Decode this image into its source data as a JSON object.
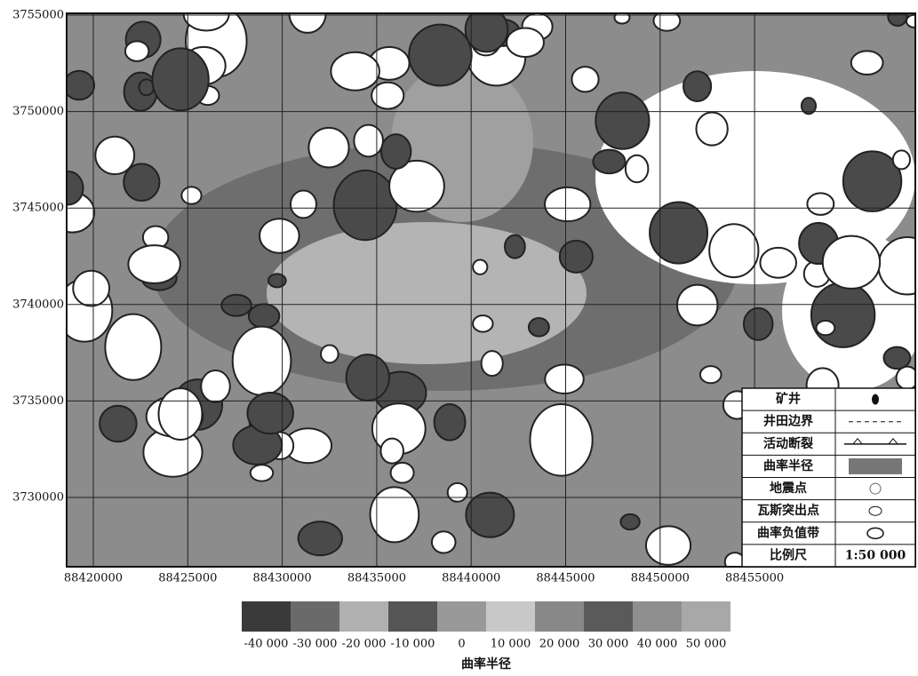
{
  "map": {
    "y_ticks": [
      "3755000",
      "3750000",
      "3745000",
      "3740000",
      "3735000",
      "3730000"
    ],
    "x_ticks": [
      "88420000",
      "88425000",
      "88430000",
      "88435000",
      "88440000",
      "88445000",
      "88450000",
      "88455000"
    ],
    "legend": {
      "rows": [
        "矿井",
        "井田边界",
        "活动断裂",
        "曲率半径",
        "地震点",
        "瓦斯突出点",
        "曲率负值带",
        "比例尺"
      ],
      "scale": "1:50 000"
    },
    "colorbar": {
      "labels": [
        "-40 000",
        "-30 000",
        "-20 000",
        "-10 000",
        "0",
        "10 000",
        "20 000",
        "30 000",
        "40 000",
        "50 000"
      ],
      "title": "曲率半径"
    }
  }
}
